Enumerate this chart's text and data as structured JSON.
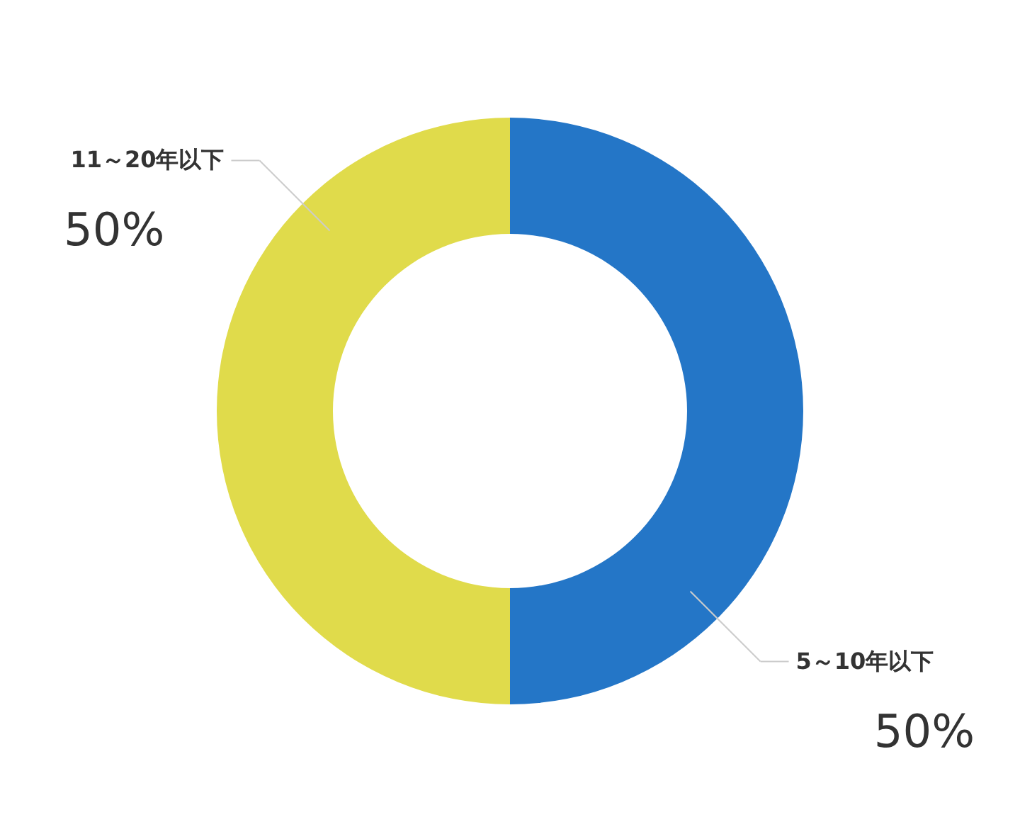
{
  "chart_data": {
    "type": "donut",
    "categories": [
      "5～10年以下",
      "11～20年以下"
    ],
    "values": [
      50,
      50
    ],
    "colors": [
      "#2476c7",
      "#e0db4b"
    ],
    "value_labels": [
      "50%",
      "50%"
    ]
  }
}
